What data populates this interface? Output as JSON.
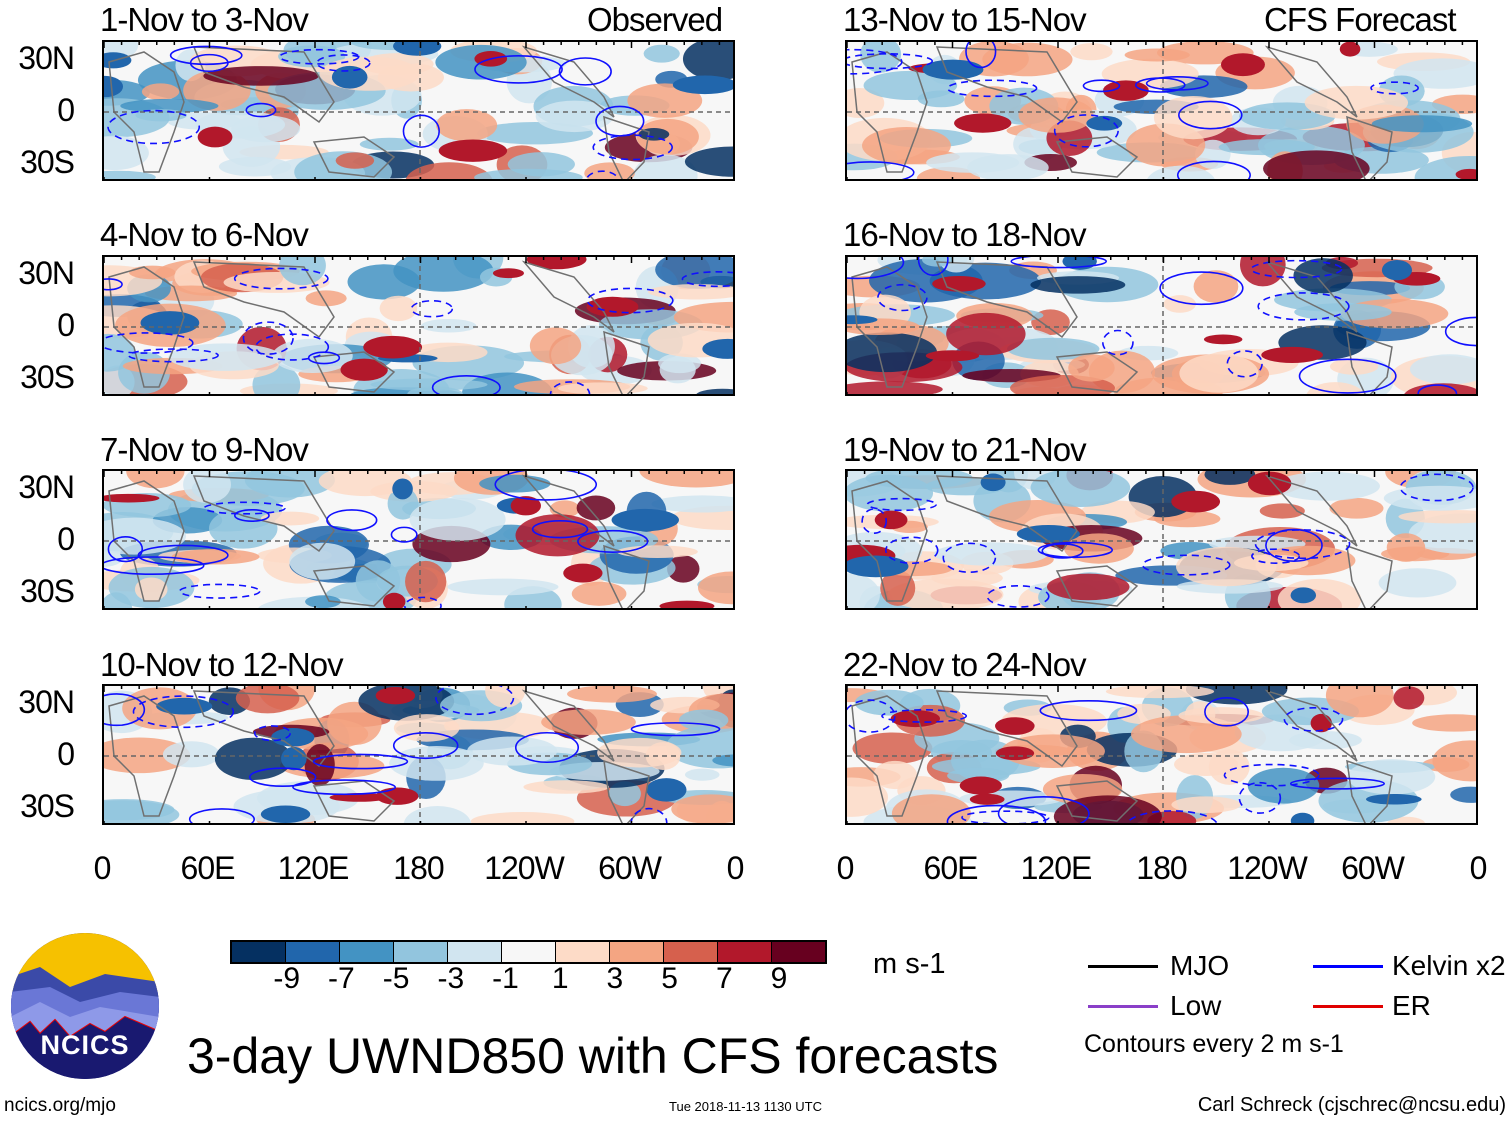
{
  "title": "3-day UWND850 with CFS forecasts",
  "logo": {
    "text": "NCICS"
  },
  "footer": {
    "url": "ncics.org/mjo",
    "timestamp": "Tue 2018-11-13 1130 UTC",
    "author": "Carl Schreck (cjschrec@ncsu.edu)"
  },
  "columns": [
    {
      "label": "Observed",
      "panels": [
        "1-Nov to 3-Nov",
        "4-Nov to 6-Nov",
        "7-Nov to 9-Nov",
        "10-Nov to 12-Nov"
      ]
    },
    {
      "label": "CFS Forecast",
      "panels": [
        "13-Nov to 15-Nov",
        "16-Nov to 18-Nov",
        "19-Nov to 21-Nov",
        "22-Nov to 24-Nov"
      ]
    }
  ],
  "lat_labels": [
    "30N",
    "0",
    "30S"
  ],
  "lon_labels": [
    "0",
    "60E",
    "120E",
    "180",
    "120W",
    "60W",
    "0"
  ],
  "colorbar": {
    "units": "m s-1",
    "labels": [
      "-9",
      "-7",
      "-5",
      "-3",
      "-1",
      "1",
      "3",
      "5",
      "7",
      "9"
    ],
    "colors": [
      "#053061",
      "#2166ac",
      "#4393c3",
      "#92c5de",
      "#d1e5f0",
      "#f7f7f7",
      "#fddbc7",
      "#f4a582",
      "#d6604d",
      "#b2182b",
      "#67001f"
    ]
  },
  "legend": {
    "items": [
      {
        "label": "MJO",
        "color": "#000000"
      },
      {
        "label": "Kelvin x2",
        "color": "#0000ff"
      },
      {
        "label": "Low",
        "color": "#8a3fc8"
      },
      {
        "label": "ER",
        "color": "#e00000"
      }
    ],
    "note": "Contours every 2 m s-1"
  }
}
